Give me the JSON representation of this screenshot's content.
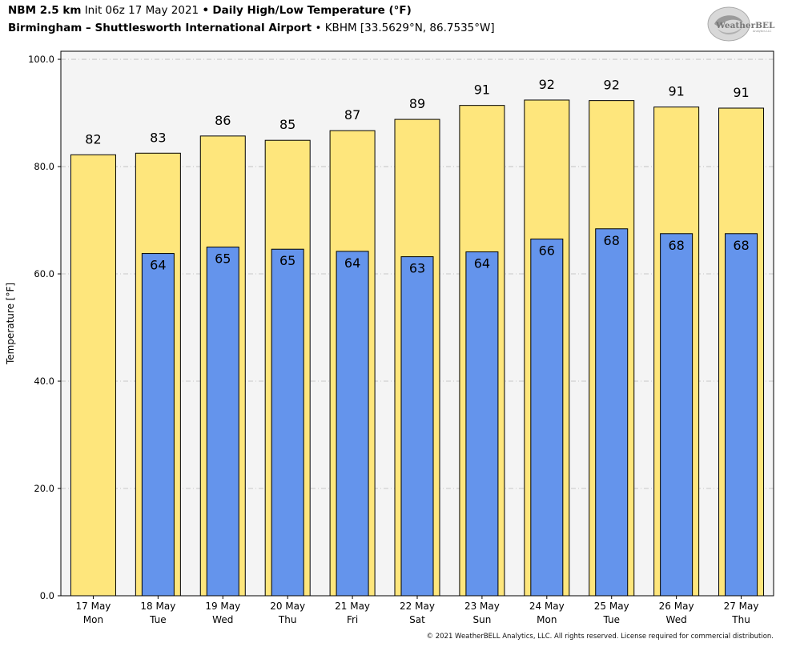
{
  "header": {
    "model": "NBM 2.5 km",
    "init": "Init 06z 17 May 2021",
    "sep1": "•",
    "product": "Daily High/Low Temperature (°F)",
    "location": "Birmingham – Shuttlesworth International Airport",
    "sep2": "•",
    "station": "KBHM [33.5629°N, 86.7535°W]"
  },
  "logo": {
    "text": "WeatherBELL",
    "sub": "Analytics LLC"
  },
  "footer": {
    "copyright": "© 2021 WeatherBELL Analytics, LLC. All rights reserved. License required for commercial distribution."
  },
  "chart_data": {
    "type": "bar",
    "title": "Daily High/Low Temperature (°F)",
    "ylabel": "Temperature [°F]",
    "xlabel": "",
    "ylim": [
      0,
      101.5
    ],
    "yticks": [
      "0.0",
      "20.0",
      "40.0",
      "60.0",
      "80.0",
      "100.0"
    ],
    "ytick_values": [
      0,
      20,
      40,
      60,
      80,
      100
    ],
    "grid": true,
    "categories": [
      {
        "date": "17 May",
        "day": "Mon"
      },
      {
        "date": "18 May",
        "day": "Tue"
      },
      {
        "date": "19 May",
        "day": "Wed"
      },
      {
        "date": "20 May",
        "day": "Thu"
      },
      {
        "date": "21 May",
        "day": "Fri"
      },
      {
        "date": "22 May",
        "day": "Sat"
      },
      {
        "date": "23 May",
        "day": "Sun"
      },
      {
        "date": "24 May",
        "day": "Mon"
      },
      {
        "date": "25 May",
        "day": "Tue"
      },
      {
        "date": "26 May",
        "day": "Wed"
      },
      {
        "date": "27 May",
        "day": "Thu"
      }
    ],
    "series": [
      {
        "key": "high",
        "color": "#fee67c",
        "values": [
          82.2,
          82.5,
          85.7,
          84.9,
          86.7,
          88.8,
          91.4,
          92.4,
          92.3,
          91.1,
          90.9
        ],
        "labels": [
          "82",
          "83",
          "86",
          "85",
          "87",
          "89",
          "91",
          "92",
          "92",
          "91",
          "91"
        ]
      },
      {
        "key": "low",
        "color": "#6494ec",
        "values": [
          null,
          63.8,
          65.0,
          64.6,
          64.2,
          63.2,
          64.1,
          66.5,
          68.4,
          67.5,
          67.5
        ],
        "labels": [
          null,
          "64",
          "65",
          "65",
          "64",
          "63",
          "64",
          "66",
          "68",
          "68",
          "68"
        ]
      }
    ],
    "colors": {
      "plot_background": "#f4f4f4",
      "grid": "#bbbbbb"
    }
  }
}
